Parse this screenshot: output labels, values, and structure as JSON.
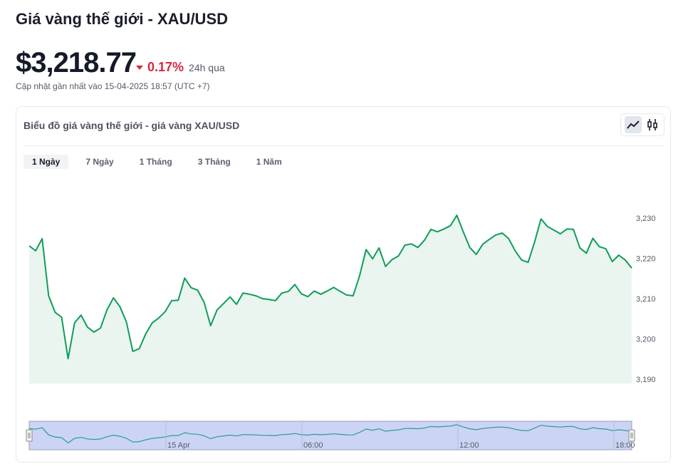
{
  "header": {
    "title": "Giá vàng thế giới - XAU/USD",
    "price": "$3,218.77",
    "change_pct": "0.17%",
    "change_direction": "down",
    "period": "24h qua",
    "updated": "Cập nhật gần nhất vào 15-04-2025 18:57 (UTC +7)"
  },
  "card": {
    "title": "Biểu đồ giá vàng thế giới - giá vàng XAU/USD",
    "chart_types": [
      {
        "icon": "line-chart-icon",
        "active": true
      },
      {
        "icon": "candlestick-icon",
        "active": false
      }
    ]
  },
  "tabs": [
    {
      "label": "1 Ngày",
      "active": true
    },
    {
      "label": "7 Ngày",
      "active": false
    },
    {
      "label": "1 Tháng",
      "active": false
    },
    {
      "label": "3 Tháng",
      "active": false
    },
    {
      "label": "1 Năm",
      "active": false
    }
  ],
  "colors": {
    "line": "#0f9d58",
    "fill": "#e9f5ee",
    "down": "#d9263f",
    "navigator_fill": "#ccd4f5",
    "navigator_line": "#2a9d8f"
  },
  "chart_data": {
    "type": "area",
    "ylim": [
      3190,
      3232
    ],
    "yticks": [
      "3,190",
      "3,200",
      "3,210",
      "3,220",
      "3,230"
    ],
    "ytick_values": [
      3190,
      3200,
      3210,
      3220,
      3230
    ],
    "navigator_ticks": [
      "15 Apr",
      "06:00",
      "12:00",
      "18:00"
    ],
    "values": [
      3223.1,
      3221.9,
      3224.9,
      3210.7,
      3206.6,
      3205.4,
      3195.1,
      3204,
      3205.9,
      3202.9,
      3201.7,
      3202.7,
      3207.2,
      3210.2,
      3208,
      3204.2,
      3196.9,
      3197.6,
      3201.3,
      3204,
      3205.2,
      3206.8,
      3209.5,
      3209.6,
      3215.1,
      3212.7,
      3212.1,
      3209.1,
      3203.3,
      3207.2,
      3208.8,
      3210.4,
      3208.6,
      3211.4,
      3211.1,
      3210.7,
      3210,
      3209.8,
      3209.5,
      3211.4,
      3211.8,
      3213.5,
      3211.2,
      3210.5,
      3211.9,
      3211.1,
      3211.9,
      3212.8,
      3211.8,
      3210.9,
      3210.7,
      3215.7,
      3222.2,
      3219.9,
      3222.6,
      3218,
      3219.7,
      3220.6,
      3223.3,
      3223.6,
      3222.7,
      3224.5,
      3227.2,
      3226.6,
      3227.3,
      3228.1,
      3230.7,
      3226.6,
      3222.7,
      3221,
      3223.5,
      3224.7,
      3225.8,
      3226.3,
      3224.9,
      3221.9,
      3219.6,
      3219,
      3224,
      3229.8,
      3227.9,
      3227,
      3226.1,
      3227.3,
      3227.2,
      3222.6,
      3221.3,
      3225,
      3222.9,
      3222.4,
      3219.2,
      3220.8,
      3219.6,
      3217.6
    ]
  }
}
